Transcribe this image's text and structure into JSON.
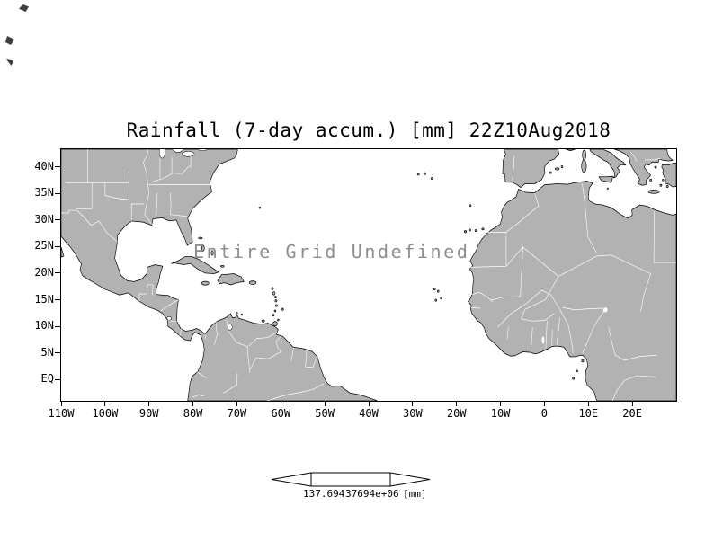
{
  "title": "Rainfall (7-day accum.) [mm] 22Z10Aug2018",
  "map": {
    "message": "Entire Grid Undefined",
    "extent": {
      "lon_min": -110,
      "lon_max": 30,
      "lat_min": -4,
      "lat_max": 43.3
    },
    "land_color": "#b2b2b2",
    "ocean_color": "#ffffff",
    "coastline_color": "#000000",
    "border_color": "#ffffff"
  },
  "axes": {
    "lat": {
      "labels": [
        "40N",
        "35N",
        "30N",
        "25N",
        "20N",
        "15N",
        "10N",
        "5N",
        "EQ"
      ],
      "values": [
        40,
        35,
        30,
        25,
        20,
        15,
        10,
        5,
        0
      ]
    },
    "lon": {
      "labels": [
        "110W",
        "100W",
        "90W",
        "80W",
        "70W",
        "60W",
        "50W",
        "40W",
        "30W",
        "20W",
        "10W",
        "0",
        "10E",
        "20E"
      ],
      "values": [
        -110,
        -100,
        -90,
        -80,
        -70,
        -60,
        -50,
        -40,
        -30,
        -20,
        -10,
        0,
        10,
        20
      ]
    }
  },
  "colorbar": {
    "left_label": "137.694",
    "right_label": "37694e+06",
    "unit": "[mm]"
  }
}
